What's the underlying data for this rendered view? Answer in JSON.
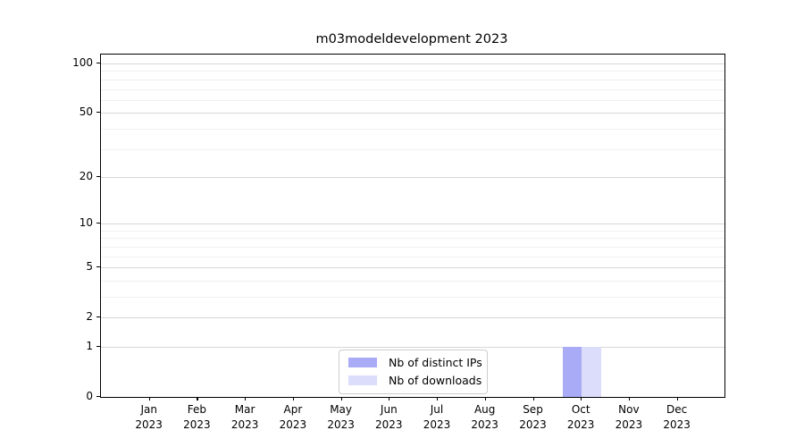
{
  "figure": {
    "background": "#ffffff"
  },
  "chart_data": {
    "type": "bar",
    "title": "m03modeldevelopment 2023",
    "categories": [
      "Jan",
      "Feb",
      "Mar",
      "Apr",
      "May",
      "Jun",
      "Jul",
      "Aug",
      "Sep",
      "Oct",
      "Nov",
      "Dec"
    ],
    "category_year": "2023",
    "series": [
      {
        "name": "Nb of distinct IPs",
        "color": "#a9abf7",
        "values": [
          0,
          0,
          0,
          0,
          0,
          0,
          0,
          0,
          0,
          1,
          0,
          0
        ]
      },
      {
        "name": "Nb of downloads",
        "color": "#dbddfa",
        "values": [
          0,
          0,
          0,
          0,
          0,
          0,
          0,
          0,
          0,
          1,
          0,
          0
        ]
      }
    ],
    "y_axis": {
      "scale": "log1p",
      "major_ticks": [
        0,
        1,
        2,
        5,
        10,
        20,
        50,
        100
      ],
      "minor_ticks": [
        3,
        4,
        6,
        7,
        8,
        9,
        30,
        40,
        60,
        70,
        80,
        90
      ],
      "range": [
        0,
        113.3
      ]
    },
    "x_axis": {
      "tick_count": 12
    },
    "grid": {
      "major_color": "#d7d7d7",
      "minor_color": "#f0f0f0"
    },
    "legend": {
      "position": "bottom-center",
      "border_color": "#cccccc"
    }
  }
}
